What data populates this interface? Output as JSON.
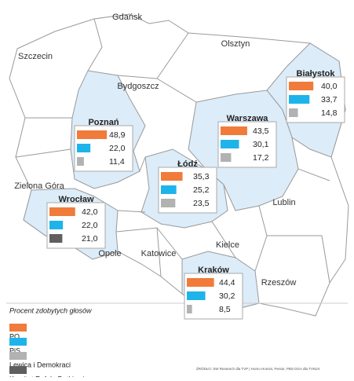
{
  "map": {
    "cities": [
      "Gdańsk",
      "Szczecin",
      "Olsztyn",
      "Bydgoszcz",
      "Zielona Góra",
      "Lublin",
      "Opole",
      "Katowice",
      "Kielce",
      "Rzeszów"
    ],
    "regions": [
      {
        "name": "Poznań",
        "bars": [
          {
            "value": 48.9,
            "label": "48,9",
            "color": "#f07b3a"
          },
          {
            "value": 22.0,
            "label": "22,0",
            "color": "#1eb4ea"
          },
          {
            "value": 11.4,
            "label": "11,4",
            "color": "#b2b2b2"
          }
        ]
      },
      {
        "name": "Białystok",
        "bars": [
          {
            "value": 40.0,
            "label": "40,0",
            "color": "#f07b3a"
          },
          {
            "value": 33.7,
            "label": "33,7",
            "color": "#1eb4ea"
          },
          {
            "value": 14.8,
            "label": "14,8",
            "color": "#b2b2b2"
          }
        ]
      },
      {
        "name": "Warszawa",
        "bars": [
          {
            "value": 43.5,
            "label": "43,5",
            "color": "#f07b3a"
          },
          {
            "value": 30.1,
            "label": "30,1",
            "color": "#1eb4ea"
          },
          {
            "value": 17.2,
            "label": "17,2",
            "color": "#b2b2b2"
          }
        ]
      },
      {
        "name": "Łódź",
        "bars": [
          {
            "value": 35.3,
            "label": "35,3",
            "color": "#f07b3a"
          },
          {
            "value": 25.2,
            "label": "25,2",
            "color": "#1eb4ea"
          },
          {
            "value": 23.5,
            "label": "23,5",
            "color": "#b2b2b2"
          }
        ]
      },
      {
        "name": "Wrocław",
        "bars": [
          {
            "value": 42.0,
            "label": "42,0",
            "color": "#f07b3a"
          },
          {
            "value": 22.0,
            "label": "22,0",
            "color": "#1eb4ea"
          },
          {
            "value": 21.0,
            "label": "21,0",
            "color": "#5f5f5f"
          }
        ]
      },
      {
        "name": "Kraków",
        "bars": [
          {
            "value": 44.4,
            "label": "44,4",
            "color": "#f07b3a"
          },
          {
            "value": 30.2,
            "label": "30,2",
            "color": "#1eb4ea"
          },
          {
            "value": 8.5,
            "label": "8,5",
            "color": "#b2b2b2"
          }
        ]
      }
    ]
  },
  "legend": {
    "title": "Procent zdobytych głosów",
    "items": [
      {
        "name": "PO",
        "color": "#f07b3a"
      },
      {
        "name": "PiS",
        "color": "#1eb4ea"
      },
      {
        "name": "Lewica i Demokraci",
        "color": "#b2b2b2"
      },
      {
        "name": "Komitet Rafała Dutkiewicza",
        "color": "#5f5f5f"
      }
    ]
  },
  "source": "ŹRÓDŁO: SW Research dla TVP | Homo Homini, Pentor, PBS DGA dla TVN24"
}
